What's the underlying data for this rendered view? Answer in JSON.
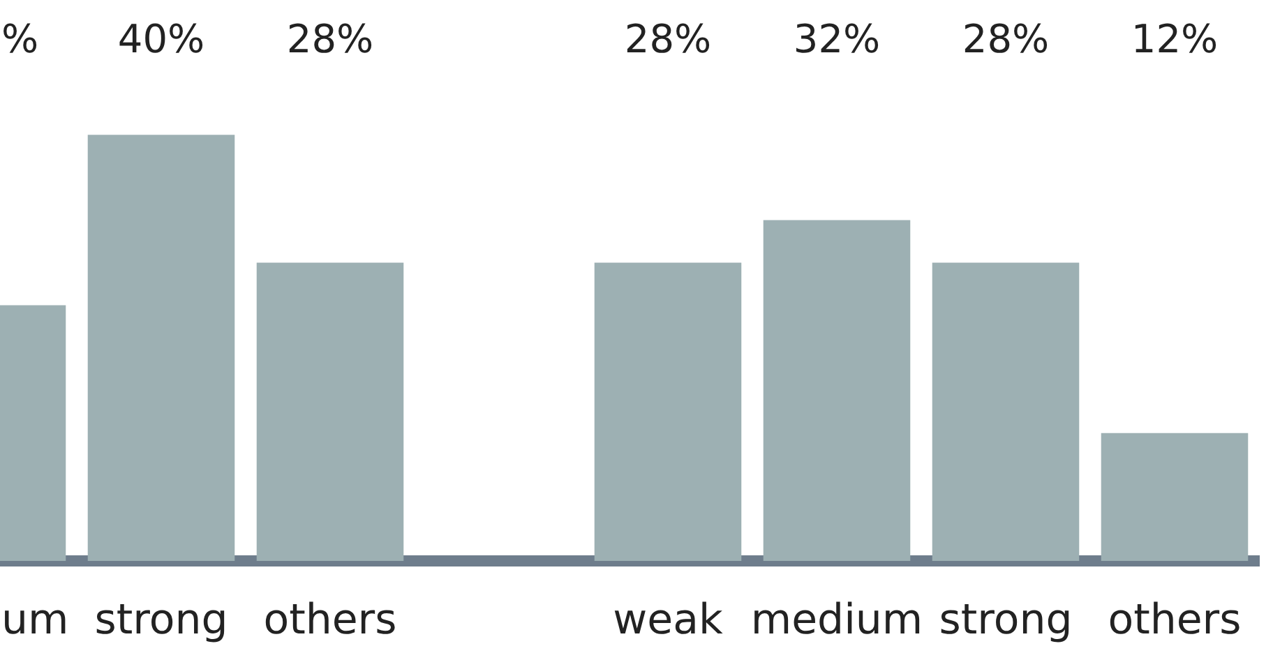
{
  "chart_data": {
    "type": "bar",
    "categories": [
      "um",
      "strong",
      "others",
      null,
      "weak",
      "medium",
      "strong",
      "others"
    ],
    "values": [
      24,
      40,
      28,
      null,
      28,
      32,
      28,
      12
    ],
    "value_labels": [
      "%",
      "40%",
      "28%",
      null,
      "28%",
      "32%",
      "28%",
      "12%"
    ],
    "color": "#9db0b3",
    "grid": false,
    "legend": false
  }
}
